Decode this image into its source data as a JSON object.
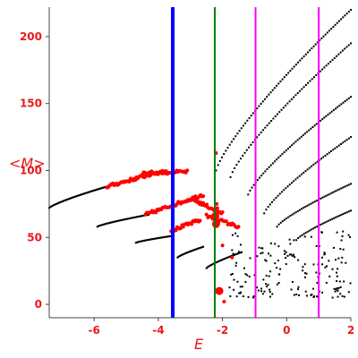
{
  "chart_data": {
    "type": "scatter",
    "xlabel": "E",
    "ylabel": "<M>",
    "xlim": [
      -7.4,
      2.0
    ],
    "ylim": [
      -10,
      222
    ],
    "xticks": [
      -6,
      -4,
      -2,
      0,
      2
    ],
    "yticks": [
      0,
      50,
      100,
      150,
      200
    ],
    "colors": {
      "axis_text": "#e8191a",
      "black_points": "#000000",
      "red_points": "#ff0000",
      "blue_line": "#0000ff",
      "green_line": "#008000",
      "magenta_line": "#ff00ff"
    },
    "vertical_lines": [
      {
        "x": -3.55,
        "color": "#0000ff",
        "width": 4
      },
      {
        "x": -2.24,
        "color": "#008000",
        "width": 2
      },
      {
        "x": -0.97,
        "color": "#ff00ff",
        "width": 2
      },
      {
        "x": 1.0,
        "color": "#ff00ff",
        "width": 2
      }
    ],
    "black_branches": [
      {
        "x0": -7.4,
        "y0": 72,
        "x1": -5.6,
        "y1": 88,
        "n": 60
      },
      {
        "x0": -5.9,
        "y0": 58,
        "x1": -4.3,
        "y1": 67,
        "n": 50
      },
      {
        "x0": -4.7,
        "y0": 46,
        "x1": -3.6,
        "y1": 51,
        "n": 35
      },
      {
        "x0": -3.4,
        "y0": 35,
        "x1": -2.6,
        "y1": 43,
        "n": 25
      },
      {
        "x0": -2.5,
        "y0": 27,
        "x1": -1.4,
        "y1": 39,
        "n": 30
      },
      {
        "x0": -2.2,
        "y0": 100,
        "x1": 2.0,
        "y1": 220,
        "n": 70
      },
      {
        "x0": -1.75,
        "y0": 95,
        "x1": 2.0,
        "y1": 195,
        "n": 60
      },
      {
        "x0": -1.2,
        "y0": 82,
        "x1": 2.0,
        "y1": 155,
        "n": 55
      },
      {
        "x0": -0.7,
        "y0": 68,
        "x1": 2.0,
        "y1": 125,
        "n": 45
      },
      {
        "x0": -0.3,
        "y0": 58,
        "x1": 2.0,
        "y1": 90,
        "n": 40
      },
      {
        "x0": 0.3,
        "y0": 48,
        "x1": 2.0,
        "y1": 70,
        "n": 30
      }
    ],
    "black_scatter_region": {
      "xmin": -1.8,
      "xmax": 2.0,
      "ymin": 5,
      "ymax": 55,
      "n": 170
    },
    "red_branches": [
      {
        "x0": -5.6,
        "y0": 88,
        "x1": -3.8,
        "y1": 100,
        "n": 50
      },
      {
        "x0": -4.5,
        "y0": 98,
        "x1": -3.1,
        "y1": 99,
        "n": 35
      },
      {
        "x0": -4.4,
        "y0": 67,
        "x1": -2.6,
        "y1": 82,
        "n": 45
      },
      {
        "x0": -3.6,
        "y0": 55,
        "x1": -2.7,
        "y1": 63,
        "n": 25
      },
      {
        "x0": -2.9,
        "y0": 78,
        "x1": -2.0,
        "y1": 68,
        "n": 25
      },
      {
        "x0": -2.5,
        "y0": 66,
        "x1": -1.5,
        "y1": 58,
        "n": 22
      }
    ],
    "red_big_points": [
      {
        "x": -2.22,
        "y": 66
      },
      {
        "x": -2.2,
        "y": 60
      },
      {
        "x": -2.1,
        "y": 10
      }
    ],
    "red_small_points": [
      {
        "x": -2.2,
        "y": 113
      },
      {
        "x": -2.18,
        "y": 75
      },
      {
        "x": -2.16,
        "y": 72
      },
      {
        "x": -1.95,
        "y": 2
      },
      {
        "x": -1.7,
        "y": 35
      },
      {
        "x": -2.0,
        "y": 44
      }
    ]
  }
}
